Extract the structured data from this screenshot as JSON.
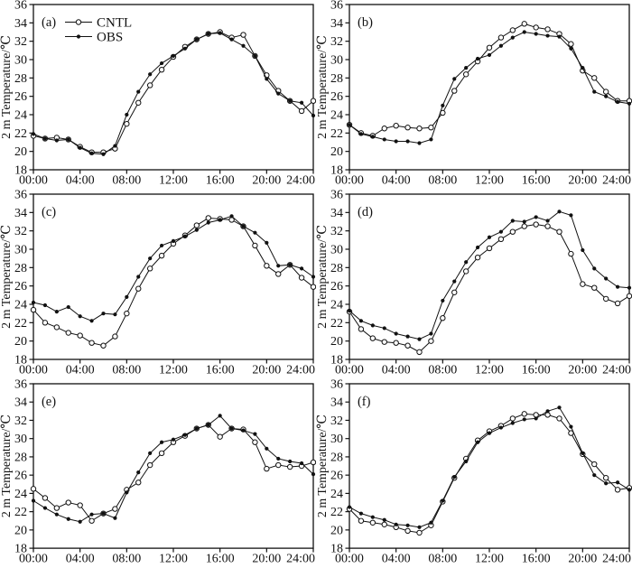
{
  "figure": {
    "ylabel": "2 m Temperature/℃",
    "x_tick_labels": [
      "00:00",
      "04:00",
      "08:00",
      "12:00",
      "16:00",
      "20:00",
      "24:00"
    ],
    "x_tick_hours": [
      0,
      4,
      8,
      12,
      16,
      20,
      24
    ],
    "y_ticks": [
      18,
      20,
      22,
      24,
      26,
      28,
      30,
      32,
      34,
      36
    ],
    "legend": [
      "CNTL",
      "OBS"
    ],
    "line_color": "#111111",
    "x_hours_range": [
      0,
      24
    ],
    "x_interval_hours": 1
  },
  "chart_data": [
    {
      "id": "a",
      "label": "(a)",
      "type": "line",
      "ylim": [
        18,
        36
      ],
      "show_legend": true,
      "series": [
        {
          "name": "CNTL",
          "marker": "open-circle",
          "values": [
            21.7,
            21.4,
            21.5,
            21.3,
            20.5,
            19.9,
            19.9,
            20.3,
            23.0,
            25.3,
            27.2,
            28.9,
            30.3,
            31.4,
            32.2,
            32.8,
            33.0,
            32.4,
            32.7,
            30.4,
            28.3,
            26.6,
            25.5,
            24.4,
            25.5
          ]
        },
        {
          "name": "OBS",
          "marker": "filled-circle",
          "values": [
            21.9,
            21.4,
            21.2,
            21.3,
            20.4,
            19.8,
            19.7,
            20.6,
            24.0,
            26.5,
            28.4,
            29.6,
            30.4,
            31.2,
            32.2,
            32.8,
            32.9,
            32.2,
            31.5,
            30.4,
            27.9,
            26.3,
            25.5,
            25.3,
            23.9
          ]
        }
      ]
    },
    {
      "id": "b",
      "label": "(b)",
      "type": "line",
      "ylim": [
        18,
        36
      ],
      "show_legend": false,
      "series": [
        {
          "name": "CNTL",
          "marker": "open-circle",
          "values": [
            22.9,
            22.0,
            21.7,
            22.5,
            22.8,
            22.6,
            22.5,
            22.6,
            24.2,
            26.6,
            28.4,
            29.8,
            31.3,
            32.4,
            33.2,
            33.9,
            33.5,
            33.3,
            32.8,
            31.7,
            28.8,
            28.0,
            26.5,
            25.5,
            25.5
          ]
        },
        {
          "name": "OBS",
          "marker": "filled-circle",
          "values": [
            22.9,
            21.9,
            21.6,
            21.3,
            21.1,
            21.1,
            20.9,
            21.3,
            25.0,
            27.9,
            29.1,
            30.1,
            30.5,
            31.5,
            32.4,
            33.0,
            32.8,
            32.6,
            32.5,
            31.2,
            29.1,
            26.5,
            26.0,
            25.4,
            25.2
          ]
        }
      ]
    },
    {
      "id": "c",
      "label": "(c)",
      "type": "line",
      "ylim": [
        18,
        36
      ],
      "show_legend": false,
      "series": [
        {
          "name": "CNTL",
          "marker": "open-circle",
          "values": [
            23.4,
            22.0,
            21.5,
            20.9,
            20.6,
            19.8,
            19.5,
            20.5,
            23.0,
            25.7,
            27.9,
            29.3,
            30.6,
            31.5,
            32.6,
            33.4,
            33.3,
            33.2,
            32.5,
            30.4,
            28.2,
            27.3,
            28.3,
            26.9,
            25.9
          ]
        },
        {
          "name": "OBS",
          "marker": "filled-circle",
          "values": [
            24.2,
            23.9,
            23.2,
            23.7,
            22.7,
            22.2,
            23.0,
            22.9,
            24.8,
            27.0,
            29.0,
            30.4,
            30.9,
            31.4,
            32.1,
            32.9,
            33.2,
            33.6,
            32.5,
            31.8,
            30.7,
            28.2,
            28.3,
            27.9,
            27.0
          ]
        }
      ]
    },
    {
      "id": "d",
      "label": "(d)",
      "type": "line",
      "ylim": [
        18,
        36
      ],
      "show_legend": false,
      "series": [
        {
          "name": "CNTL",
          "marker": "open-circle",
          "values": [
            23.2,
            21.3,
            20.3,
            19.9,
            19.8,
            19.5,
            18.8,
            20.0,
            22.5,
            25.3,
            27.6,
            29.1,
            30.1,
            31.1,
            31.9,
            32.5,
            32.7,
            32.5,
            31.9,
            29.5,
            26.2,
            25.8,
            24.6,
            24.1,
            24.9
          ]
        },
        {
          "name": "OBS",
          "marker": "filled-circle",
          "values": [
            23.3,
            22.2,
            21.7,
            21.4,
            20.8,
            20.5,
            20.2,
            20.8,
            24.4,
            26.5,
            28.6,
            30.2,
            31.3,
            31.9,
            33.1,
            33.0,
            33.5,
            33.1,
            34.1,
            33.7,
            29.9,
            27.9,
            26.8,
            25.9,
            25.8
          ]
        }
      ]
    },
    {
      "id": "e",
      "label": "(e)",
      "type": "line",
      "ylim": [
        18,
        36
      ],
      "show_legend": false,
      "series": [
        {
          "name": "CNTL",
          "marker": "open-circle",
          "values": [
            24.5,
            23.5,
            22.4,
            23.0,
            22.7,
            21.0,
            21.8,
            22.3,
            24.4,
            25.2,
            27.1,
            28.4,
            29.6,
            30.3,
            31.1,
            31.5,
            30.2,
            31.1,
            31.0,
            29.6,
            26.7,
            27.1,
            26.9,
            27.0,
            27.4
          ]
        },
        {
          "name": "OBS",
          "marker": "filled-circle",
          "values": [
            23.2,
            22.4,
            21.7,
            21.2,
            20.9,
            21.7,
            21.8,
            21.3,
            24.1,
            26.3,
            28.4,
            29.6,
            29.9,
            30.4,
            31.1,
            31.5,
            32.5,
            31.1,
            30.9,
            30.5,
            28.9,
            27.8,
            27.5,
            27.3,
            26.1
          ]
        }
      ]
    },
    {
      "id": "f",
      "label": "(f)",
      "type": "line",
      "ylim": [
        18,
        36
      ],
      "show_legend": false,
      "series": [
        {
          "name": "CNTL",
          "marker": "open-circle",
          "values": [
            22.3,
            21.0,
            20.8,
            20.6,
            20.3,
            19.9,
            19.7,
            20.5,
            23.1,
            25.7,
            27.8,
            29.8,
            30.8,
            31.4,
            32.2,
            32.7,
            32.6,
            32.6,
            32.2,
            30.6,
            28.3,
            27.2,
            25.7,
            24.4,
            24.6
          ]
        },
        {
          "name": "OBS",
          "marker": "filled-circle",
          "values": [
            22.5,
            21.8,
            21.4,
            21.1,
            20.6,
            20.5,
            20.3,
            20.8,
            23.2,
            25.8,
            27.5,
            29.6,
            30.6,
            31.2,
            31.7,
            32.1,
            32.2,
            33.0,
            33.4,
            31.3,
            28.4,
            26.0,
            25.1,
            25.2,
            24.4
          ]
        }
      ]
    }
  ]
}
